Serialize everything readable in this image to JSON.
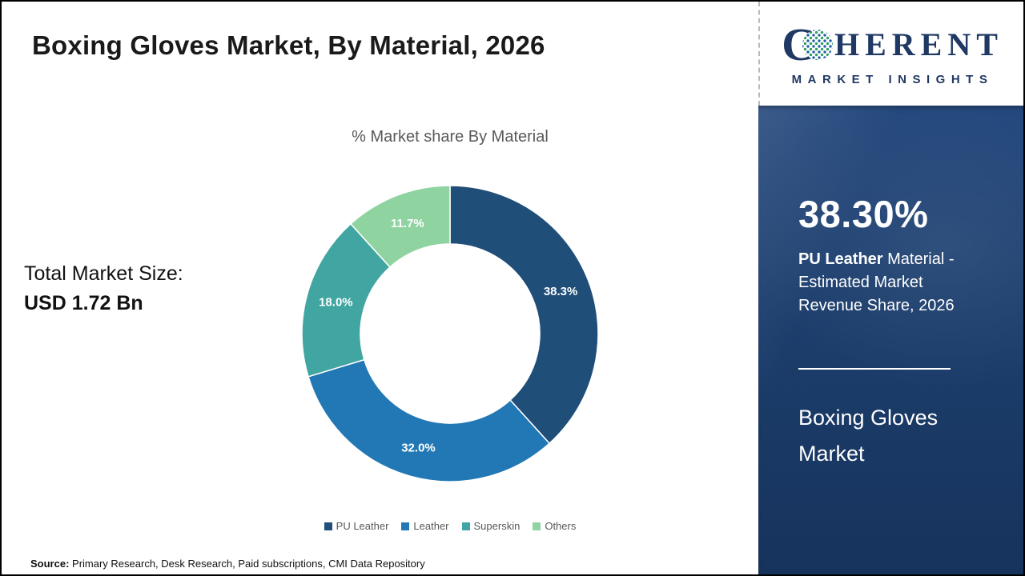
{
  "header": {
    "title": "Boxing Gloves Market, By Material, 2026"
  },
  "logo": {
    "brand_c": "C",
    "brand_rest": "HERENT",
    "brand_sub": "MARKET INSIGHTS"
  },
  "left": {
    "total_label": "Total Market Size:",
    "total_value": "USD 1.72 Bn"
  },
  "chart_data": {
    "type": "pie",
    "donut": true,
    "title": "% Market share By Material",
    "categories": [
      "PU Leather",
      "Leather",
      "Superskin",
      "Others"
    ],
    "values": [
      38.3,
      32.0,
      18.0,
      11.7
    ],
    "labels": [
      "38.3%",
      "32.0%",
      "18.0%",
      "11.7%"
    ],
    "colors": [
      "#1f4e79",
      "#2278b5",
      "#41a5a2",
      "#8fd3a0"
    ],
    "start_angle_deg": 0,
    "direction": "clockwise",
    "legend_position": "bottom"
  },
  "side_panel": {
    "stat_value": "38.30%",
    "stat_bold": "PU Leather",
    "stat_rest": " Material - Estimated Market Revenue Share, 2026",
    "market_name": "Boxing Gloves Market"
  },
  "footer": {
    "source_label": "Source:",
    "source_text": " Primary Research, Desk Research, Paid subscriptions, CMI Data Repository"
  }
}
